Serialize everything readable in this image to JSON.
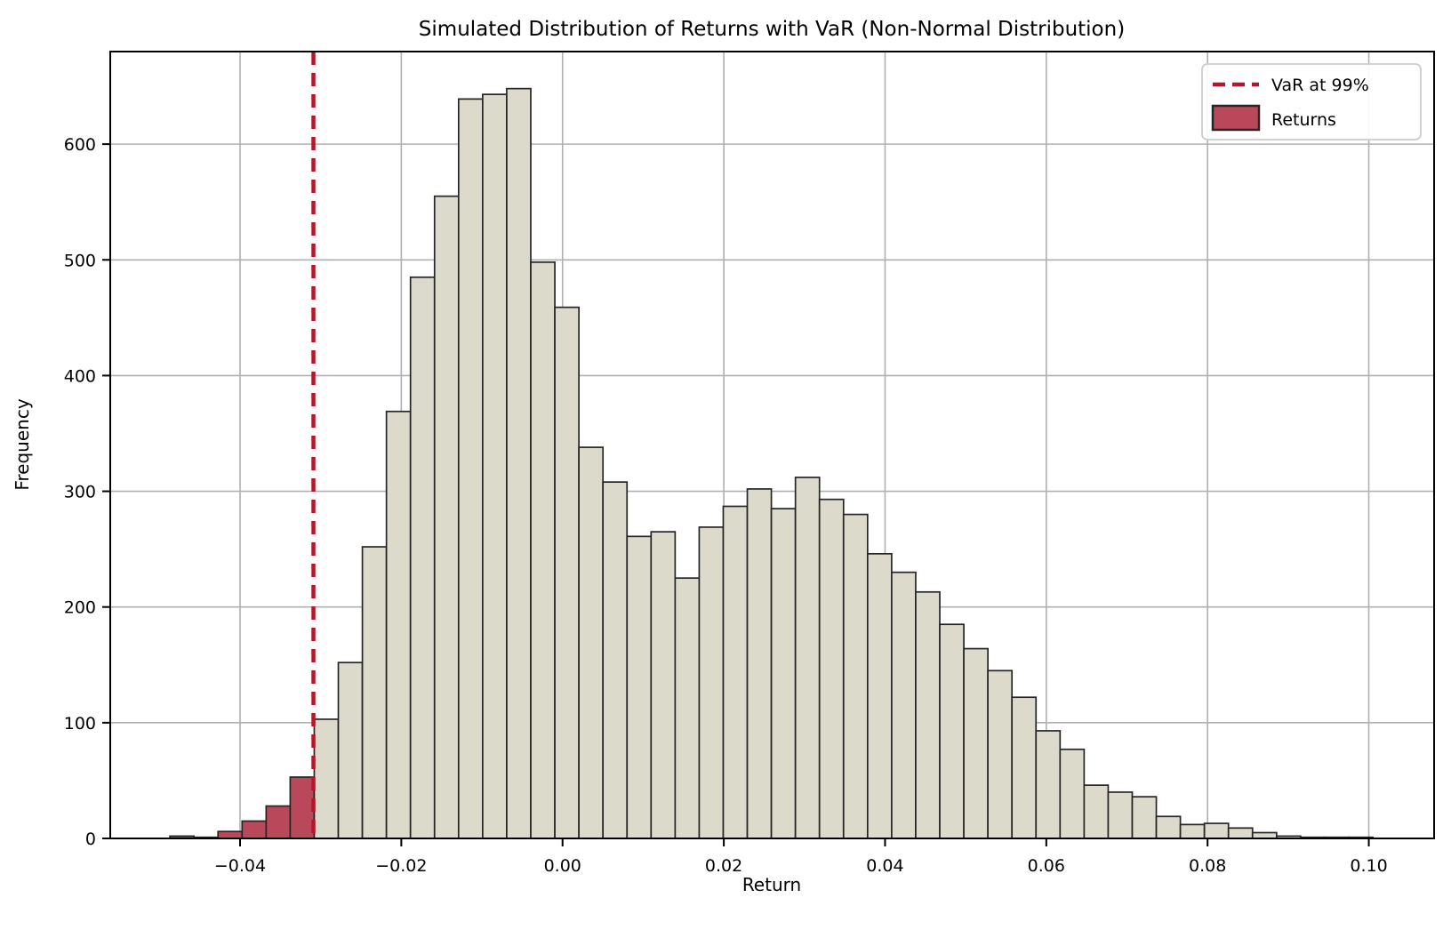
{
  "chart_data": {
    "type": "bar",
    "subtype": "histogram",
    "title": "Simulated Distribution of Returns with VaR (Non-Normal Distribution)",
    "xlabel": "Return",
    "ylabel": "Frequency",
    "bin_start": -0.0487,
    "bin_width": 0.002984,
    "frequencies": [
      2,
      1,
      6,
      15,
      28,
      53,
      103,
      152,
      252,
      369,
      485,
      555,
      639,
      643,
      648,
      498,
      459,
      338,
      308,
      261,
      265,
      225,
      269,
      287,
      302,
      285,
      312,
      293,
      280,
      246,
      230,
      213,
      185,
      164,
      145,
      122,
      93,
      77,
      46,
      40,
      36,
      19,
      12,
      13,
      9,
      5,
      2,
      1,
      1,
      1
    ],
    "red_tail_bins": 6,
    "var_line": {
      "x": -0.0309,
      "label": "VaR at 99%"
    },
    "legend": {
      "position": "upper right",
      "var_label": "VaR at 99%",
      "returns_label": "Returns"
    },
    "xlim": [
      -0.0561,
      0.1081
    ],
    "ylim": [
      0,
      680
    ],
    "xticks": {
      "values": [
        -0.04,
        -0.02,
        0.0,
        0.02,
        0.04,
        0.06,
        0.08,
        0.1
      ],
      "labels": [
        "−0.04",
        "−0.02",
        "0.00",
        "0.02",
        "0.04",
        "0.06",
        "0.08",
        "0.10"
      ]
    },
    "yticks": {
      "values": [
        0,
        100,
        200,
        300,
        400,
        500,
        600
      ],
      "labels": [
        "0",
        "100",
        "200",
        "300",
        "400",
        "500",
        "600"
      ]
    },
    "grid": true,
    "colors": {
      "bar_fill": "#dcdacb",
      "bar_edge": "#262626",
      "tail_fill": "#b9485a",
      "var_line": "#b2182b",
      "grid": "#b0b0b0",
      "spine": "#000000",
      "legend_border": "#cccccc",
      "legend_bg": "#ffffff"
    }
  }
}
